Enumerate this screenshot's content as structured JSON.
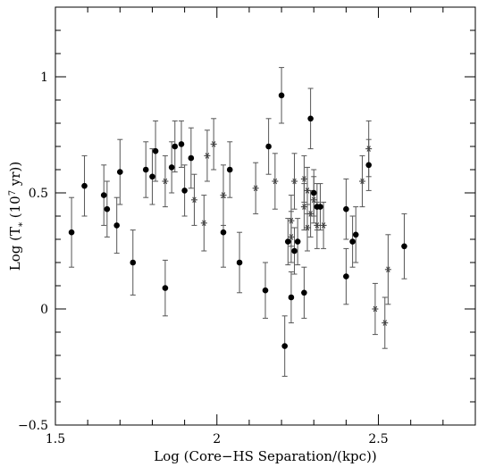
{
  "chart_data": {
    "type": "scatter",
    "xlabel": "Log (Core−HS Separation/(kpc))",
    "ylabel_parts": {
      "prefix": "Log (T",
      "subscript": "*",
      "middle": " (10",
      "superscript": "7",
      "suffix": " yr))"
    },
    "xlim": [
      1.5,
      2.8
    ],
    "ylim": [
      -0.5,
      1.3
    ],
    "x_ticks": [
      {
        "value": 1.5,
        "label": "1.5"
      },
      {
        "value": 2.0,
        "label": "2"
      },
      {
        "value": 2.5,
        "label": "2.5"
      }
    ],
    "y_ticks": [
      {
        "value": -0.5,
        "label": "−0.5"
      },
      {
        "value": 0,
        "label": "0"
      },
      {
        "value": 0.5,
        "label": "0.5"
      },
      {
        "value": 1,
        "label": "1"
      }
    ],
    "series": [
      {
        "marker": "filled-circle",
        "points": [
          {
            "x": 1.55,
            "y": 0.33,
            "err": 0.15
          },
          {
            "x": 1.59,
            "y": 0.53,
            "err": 0.13
          },
          {
            "x": 1.65,
            "y": 0.49,
            "err": 0.13
          },
          {
            "x": 1.66,
            "y": 0.43,
            "err": 0.12
          },
          {
            "x": 1.69,
            "y": 0.36,
            "err": 0.12
          },
          {
            "x": 1.7,
            "y": 0.59,
            "err": 0.14
          },
          {
            "x": 1.74,
            "y": 0.2,
            "err": 0.14
          },
          {
            "x": 1.78,
            "y": 0.6,
            "err": 0.12
          },
          {
            "x": 1.8,
            "y": 0.57,
            "err": 0.12
          },
          {
            "x": 1.81,
            "y": 0.68,
            "err": 0.13
          },
          {
            "x": 1.84,
            "y": 0.09,
            "err": 0.12
          },
          {
            "x": 1.86,
            "y": 0.61,
            "err": 0.11
          },
          {
            "x": 1.87,
            "y": 0.7,
            "err": 0.11
          },
          {
            "x": 1.89,
            "y": 0.71,
            "err": 0.1
          },
          {
            "x": 1.9,
            "y": 0.51,
            "err": 0.11
          },
          {
            "x": 1.92,
            "y": 0.65,
            "err": 0.13
          },
          {
            "x": 2.02,
            "y": 0.33,
            "err": 0.15
          },
          {
            "x": 2.04,
            "y": 0.6,
            "err": 0.12
          },
          {
            "x": 2.07,
            "y": 0.2,
            "err": 0.13
          },
          {
            "x": 2.15,
            "y": 0.08,
            "err": 0.12
          },
          {
            "x": 2.16,
            "y": 0.7,
            "err": 0.12
          },
          {
            "x": 2.2,
            "y": 0.92,
            "err": 0.12
          },
          {
            "x": 2.21,
            "y": -0.16,
            "err": 0.13
          },
          {
            "x": 2.22,
            "y": 0.29,
            "err": 0.1
          },
          {
            "x": 2.23,
            "y": 0.05,
            "err": 0.11
          },
          {
            "x": 2.24,
            "y": 0.25,
            "err": 0.1
          },
          {
            "x": 2.25,
            "y": 0.29,
            "err": 0.1
          },
          {
            "x": 2.27,
            "y": 0.07,
            "err": 0.11
          },
          {
            "x": 2.29,
            "y": 0.82,
            "err": 0.13
          },
          {
            "x": 2.3,
            "y": 0.5,
            "err": 0.1
          },
          {
            "x": 2.31,
            "y": 0.44,
            "err": 0.1
          },
          {
            "x": 2.32,
            "y": 0.44,
            "err": 0.1
          },
          {
            "x": 2.4,
            "y": 0.14,
            "err": 0.12
          },
          {
            "x": 2.4,
            "y": 0.43,
            "err": 0.13
          },
          {
            "x": 2.42,
            "y": 0.29,
            "err": 0.11
          },
          {
            "x": 2.43,
            "y": 0.32,
            "err": 0.12
          },
          {
            "x": 2.47,
            "y": 0.62,
            "err": 0.11
          },
          {
            "x": 2.58,
            "y": 0.27,
            "err": 0.14
          }
        ]
      },
      {
        "marker": "open-star",
        "points": [
          {
            "x": 1.84,
            "y": 0.55,
            "err": 0.11
          },
          {
            "x": 1.93,
            "y": 0.47,
            "err": 0.11
          },
          {
            "x": 1.96,
            "y": 0.37,
            "err": 0.12
          },
          {
            "x": 1.97,
            "y": 0.66,
            "err": 0.11
          },
          {
            "x": 1.99,
            "y": 0.71,
            "err": 0.11
          },
          {
            "x": 2.02,
            "y": 0.49,
            "err": 0.13
          },
          {
            "x": 2.12,
            "y": 0.52,
            "err": 0.11
          },
          {
            "x": 2.18,
            "y": 0.55,
            "err": 0.12
          },
          {
            "x": 2.23,
            "y": 0.38,
            "err": 0.11
          },
          {
            "x": 2.23,
            "y": 0.31,
            "err": 0.11
          },
          {
            "x": 2.24,
            "y": 0.55,
            "err": 0.12
          },
          {
            "x": 2.27,
            "y": 0.56,
            "err": 0.1
          },
          {
            "x": 2.27,
            "y": 0.44,
            "err": 0.1
          },
          {
            "x": 2.28,
            "y": 0.51,
            "err": 0.1
          },
          {
            "x": 2.28,
            "y": 0.35,
            "err": 0.1
          },
          {
            "x": 2.29,
            "y": 0.41,
            "err": 0.1
          },
          {
            "x": 2.3,
            "y": 0.47,
            "err": 0.1
          },
          {
            "x": 2.31,
            "y": 0.36,
            "err": 0.1
          },
          {
            "x": 2.33,
            "y": 0.36,
            "err": 0.1
          },
          {
            "x": 2.45,
            "y": 0.55,
            "err": 0.11
          },
          {
            "x": 2.47,
            "y": 0.69,
            "err": 0.12
          },
          {
            "x": 2.49,
            "y": 0.0,
            "err": 0.11
          },
          {
            "x": 2.52,
            "y": -0.06,
            "err": 0.11
          },
          {
            "x": 2.53,
            "y": 0.17,
            "err": 0.15
          }
        ]
      }
    ],
    "grid": false,
    "legend": "none"
  }
}
